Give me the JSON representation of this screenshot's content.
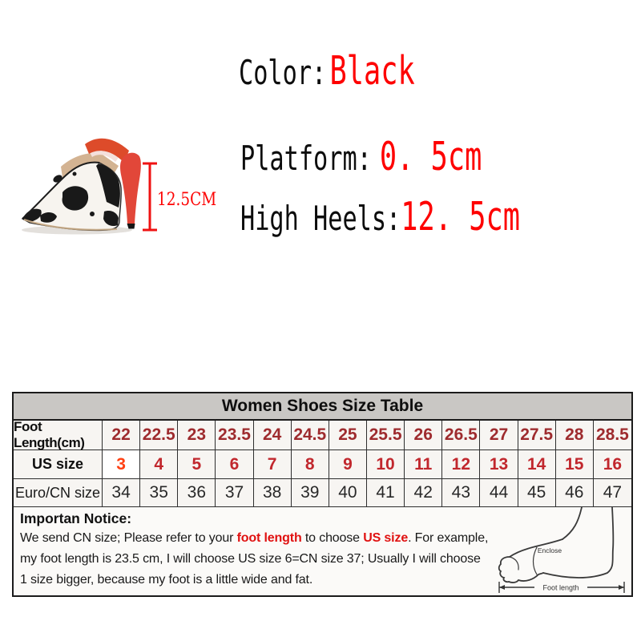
{
  "spec": {
    "color_label": "Color:",
    "color_value": "Black",
    "platform_label": "Platform:",
    "platform_value": "0. 5cm",
    "heels_label": "High Heels:",
    "heels_value": "12. 5cm",
    "heel_height_marker": "12.5CM"
  },
  "size_table": {
    "title": "Women Shoes Size Table",
    "rows": [
      {
        "label": "Foot Length(cm)",
        "values": [
          "22",
          "22.5",
          "23",
          "23.5",
          "24",
          "24.5",
          "25",
          "25.5",
          "26",
          "26.5",
          "27",
          "27.5",
          "28",
          "28.5"
        ]
      },
      {
        "label": "US size",
        "values": [
          "3",
          "4",
          "5",
          "6",
          "7",
          "8",
          "9",
          "10",
          "11",
          "12",
          "13",
          "14",
          "15",
          "16"
        ]
      },
      {
        "label": "Euro/CN size",
        "values": [
          "34",
          "35",
          "36",
          "37",
          "38",
          "39",
          "40",
          "41",
          "42",
          "43",
          "44",
          "45",
          "46",
          "47"
        ]
      }
    ],
    "highlight": {
      "row": 1,
      "col": 0
    }
  },
  "notice": {
    "title": "Importan Notice:",
    "seg1": "We send CN size; Please refer to your ",
    "seg2": "foot length",
    "seg3": " to choose ",
    "seg4": "US size",
    "seg5": ". For example,",
    "line2": "my foot length is 23.5 cm, I will choose US size 6=CN size 37; Usually I will choose",
    "line3": "1 size bigger, because my foot is a little wide and fat."
  },
  "foot_diagram": {
    "enclose_label": "Enclose",
    "foot_length_label": "Foot length"
  },
  "colors": {
    "accent_red": "#fe0000",
    "table_red_dark": "#9e2b2e",
    "table_red": "#c1272d",
    "highlight_red": "#ff4013",
    "header_gray": "#c9c7c4",
    "strap_orange": "#dd4b2a",
    "heel_red": "#e24739"
  }
}
